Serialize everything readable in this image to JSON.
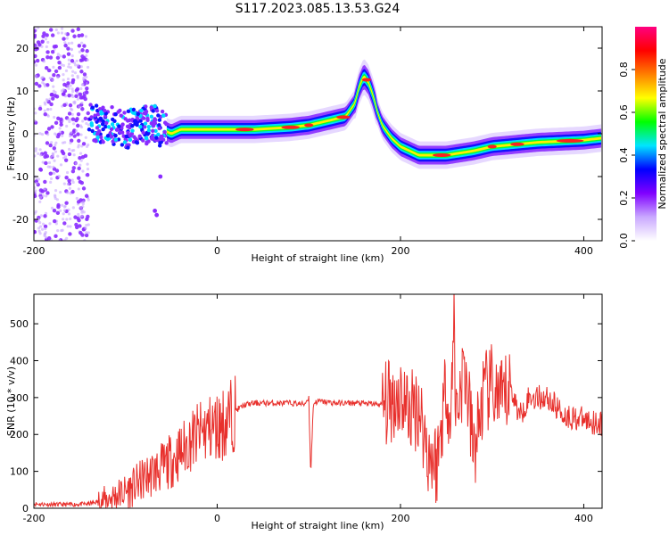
{
  "title": "S117.2023.085.13.53.G24",
  "chart_data": [
    {
      "type": "heatmap",
      "xlabel": "Height of straight line (km)",
      "ylabel": "Frequency (Hz)",
      "xlim": [
        -200,
        420
      ],
      "ylim": [
        -25,
        25
      ],
      "x_ticks": [
        -200,
        0,
        200,
        400
      ],
      "y_ticks": [
        -20,
        -10,
        0,
        10,
        20
      ],
      "grid": false,
      "colorbar": {
        "label": "Normalized spectral amplitude",
        "range": [
          0,
          1
        ],
        "ticks": [
          "0.0",
          "0.2",
          "0.4",
          "0.6",
          "0.8"
        ],
        "colors": [
          "#ffffff",
          "#c9a8ff",
          "#8000ff",
          "#0000ff",
          "#00e5ff",
          "#00ff00",
          "#ffff00",
          "#ff7f00",
          "#ff0000",
          "#ff0080"
        ]
      },
      "ridge": {
        "x": [
          -140,
          -120,
          -100,
          -85,
          -75,
          -70,
          -60,
          -50,
          -40,
          0,
          40,
          80,
          100,
          120,
          140,
          150,
          155,
          160,
          165,
          170,
          175,
          180,
          190,
          200,
          220,
          250,
          280,
          300,
          350,
          400,
          420
        ],
        "y": [
          3,
          2,
          1,
          2,
          2,
          3,
          1,
          0,
          1,
          1,
          1,
          1.5,
          2,
          3,
          4,
          7,
          11,
          13.5,
          12,
          9,
          5,
          2,
          -1,
          -3,
          -5,
          -5,
          -4,
          -3,
          -2,
          -1.5,
          -1
        ]
      }
    },
    {
      "type": "line",
      "xlabel": "Height of straight line (km)",
      "ylabel": "SNR (10 * v/v)",
      "xlim": [
        -200,
        420
      ],
      "ylim": [
        0,
        580
      ],
      "x_ticks": [
        -200,
        0,
        200,
        400
      ],
      "y_ticks": [
        0,
        100,
        200,
        300,
        400,
        500
      ],
      "grid": false,
      "series": [
        {
          "color": "#e8302c",
          "x": [
            -200,
            -180,
            -160,
            -140,
            -130,
            -120,
            -110,
            -100,
            -90,
            -80,
            -70,
            -60,
            -50,
            -40,
            -30,
            -20,
            -10,
            0,
            10,
            20,
            30,
            40,
            60,
            80,
            95,
            100,
            102,
            105,
            110,
            130,
            150,
            170,
            180,
            190,
            200,
            210,
            220,
            230,
            240,
            250,
            255,
            258,
            260,
            270,
            280,
            290,
            300,
            310,
            320,
            330,
            340,
            350,
            360,
            380,
            400,
            420
          ],
          "values": [
            12,
            10,
            10,
            12,
            18,
            25,
            35,
            45,
            60,
            80,
            95,
            110,
            130,
            150,
            180,
            200,
            215,
            220,
            235,
            265,
            280,
            285,
            285,
            285,
            282,
            300,
            90,
            285,
            290,
            285,
            285,
            283,
            280,
            290,
            310,
            260,
            280,
            150,
            120,
            350,
            200,
            570,
            260,
            380,
            150,
            300,
            330,
            280,
            330,
            250,
            300,
            300,
            300,
            250,
            240,
            230
          ]
        }
      ]
    }
  ]
}
